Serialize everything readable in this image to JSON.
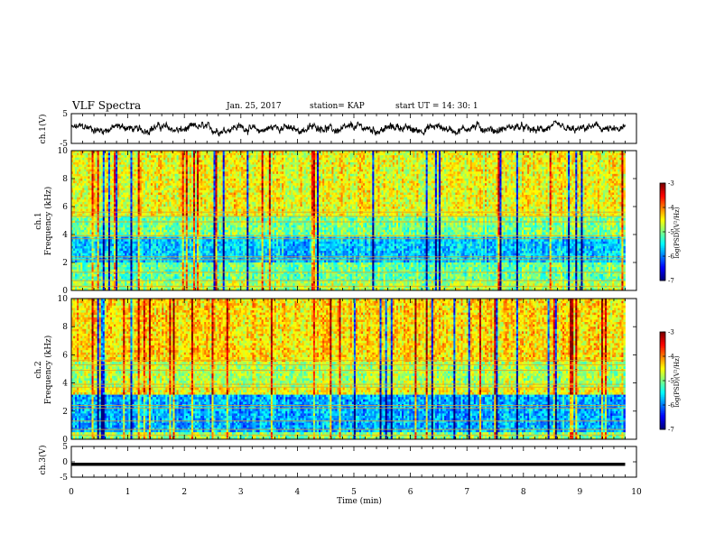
{
  "header": {
    "title": "VLF Spectra",
    "date": "Jan. 25, 2017",
    "station": "station= KAP",
    "start": "start  UT  =    14: 30: 1"
  },
  "chart_data": [
    {
      "type": "line",
      "panel": "ch1-waveform",
      "ylabel": "ch.1(V)",
      "ylim": [
        -5,
        5
      ],
      "yticks": [
        5,
        -5
      ],
      "xlim": [
        0,
        10
      ],
      "description_hidden": "noisy waveform",
      "series": [
        {
          "values_range": [
            -2.5,
            2.5
          ]
        }
      ]
    },
    {
      "type": "heatmap",
      "panel": "ch1-spectrogram",
      "ylabel_top": "ch.1",
      "ylabel": "Frequency  (kHz)",
      "ylim": [
        0,
        10
      ],
      "yticks": [
        0,
        2,
        4,
        6,
        8,
        10
      ],
      "xlim": [
        0,
        9.8
      ],
      "colorbar": {
        "label": "log(PSD)(V²/Hz)",
        "range": [
          -7,
          -3
        ],
        "ticks": [
          -3,
          -4,
          -5,
          -6,
          -7
        ]
      }
    },
    {
      "type": "heatmap",
      "panel": "ch2-spectrogram",
      "ylabel_top": "ch.2",
      "ylabel": "Frequency  (kHz)",
      "ylim": [
        0,
        10
      ],
      "yticks": [
        0,
        2,
        4,
        6,
        8,
        10
      ],
      "xlim": [
        0,
        9.8
      ],
      "colorbar": {
        "label": "log(PSD)(V²/Hz)",
        "range": [
          -7,
          -3
        ],
        "ticks": [
          -3,
          -4,
          -5,
          -6,
          -7
        ]
      }
    },
    {
      "type": "line",
      "panel": "ch3-waveform",
      "ylabel": "ch.3(V)",
      "ylim": [
        -5,
        5
      ],
      "yticks": [
        5,
        0,
        -5
      ],
      "xlim": [
        0,
        10
      ],
      "series": [
        {
          "constant": -0.8
        }
      ]
    }
  ],
  "xaxis": {
    "label": "Time  (min)",
    "ticks": [
      "0",
      "1",
      "2",
      "3",
      "4",
      "5",
      "6",
      "7",
      "8",
      "9",
      "10"
    ]
  }
}
